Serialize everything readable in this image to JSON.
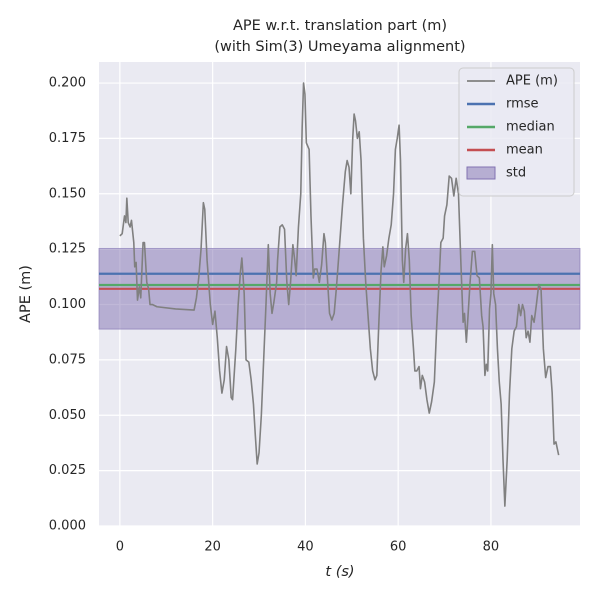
{
  "chart_data": {
    "type": "line",
    "title": "APE w.r.t. translation part (m)",
    "subtitle": "(with Sim(3) Umeyama alignment)",
    "x_label": "t (s)",
    "y_label": "APE (m)",
    "xlim": [
      -4.5,
      99.2
    ],
    "ylim": [
      0,
      0.2095
    ],
    "xticks": [
      0,
      20,
      40,
      60,
      80
    ],
    "yticks": [
      {
        "value": 0,
        "label": "0.000"
      },
      {
        "value": 0.025,
        "label": "0.025"
      },
      {
        "value": 0.05,
        "label": "0.050"
      },
      {
        "value": 0.075,
        "label": "0.075"
      },
      {
        "value": 0.1,
        "label": "0.100"
      },
      {
        "value": 0.125,
        "label": "0.125"
      },
      {
        "value": 0.15,
        "label": "0.150"
      },
      {
        "value": 0.175,
        "label": "0.175"
      },
      {
        "value": 0.2,
        "label": "0.200"
      }
    ],
    "grid": true,
    "legend": "upper right",
    "x": [
      0,
      0.5,
      1,
      1.3,
      1.5,
      1.8,
      2.2,
      2.5,
      3,
      3.2,
      3.5,
      3.8,
      4.2,
      4.5,
      5,
      5.3,
      5.8,
      6.2,
      6.5,
      7,
      8,
      12,
      16,
      16.5,
      17,
      17.5,
      18,
      18.3,
      18.8,
      19.5,
      20,
      20.5,
      21,
      21.5,
      22,
      22.5,
      23,
      23.5,
      24,
      24.3,
      25,
      25.5,
      26,
      26.3,
      26.8,
      27.2,
      27.8,
      28.3,
      28.8,
      29.2,
      29.6,
      30,
      30.5,
      31,
      31.5,
      32,
      32.4,
      32.8,
      33.2,
      33.8,
      34,
      34.5,
      35,
      35.5,
      36,
      36.4,
      36.8,
      37.3,
      37.7,
      38,
      38.5,
      39,
      39.3,
      39.6,
      39.9,
      40.2,
      40.8,
      41.2,
      41.7,
      42,
      42.5,
      43,
      43.5,
      44,
      44.3,
      44.8,
      45.2,
      45.7,
      46.2,
      46.7,
      47.3,
      48,
      48.6,
      49,
      49.4,
      49.8,
      50.2,
      50.5,
      50.8,
      51.2,
      51.6,
      52,
      52.5,
      53,
      53.5,
      54,
      54.5,
      55,
      55.4,
      55.8,
      56.3,
      56.7,
      57,
      57.5,
      58,
      58.5,
      59,
      59.4,
      59.8,
      60.2,
      60.5,
      60.9,
      61.2,
      61.6,
      62,
      62.4,
      62.8,
      63.3,
      63.6,
      64,
      64.5,
      64.8,
      65.2,
      65.7,
      66.2,
      66.7,
      67.2,
      67.8,
      68.3,
      68.8,
      69.2,
      69.7,
      70,
      70.5,
      71,
      71.5,
      72,
      72.5,
      73,
      73.5,
      74,
      74.3,
      74.7,
      75,
      75.5,
      76,
      76.5,
      77,
      77.5,
      78,
      78.3,
      78.7,
      79,
      79.3,
      79.7,
      80,
      80.3,
      80.6,
      81,
      81.4,
      81.8,
      82.2,
      82.6,
      83,
      83.5,
      84,
      84.5,
      85,
      85.5,
      86,
      86.4,
      86.8,
      87.2,
      87.6,
      88,
      88.4,
      88.8,
      89.3,
      89.8,
      90.3,
      90.8,
      91.3,
      91.8,
      92.3,
      92.8,
      93.2,
      93.6,
      94,
      94.3,
      94.6
    ],
    "series": [
      {
        "name": "APE (m)",
        "color": "#808080",
        "values": [
          0.131,
          0.132,
          0.14,
          0.137,
          0.148,
          0.137,
          0.135,
          0.138,
          0.128,
          0.117,
          0.119,
          0.102,
          0.108,
          0.103,
          0.128,
          0.128,
          0.11,
          0.107,
          0.1,
          0.1,
          0.099,
          0.098,
          0.0975,
          0.103,
          0.112,
          0.125,
          0.146,
          0.143,
          0.12,
          0.1,
          0.091,
          0.097,
          0.085,
          0.07,
          0.06,
          0.066,
          0.081,
          0.075,
          0.058,
          0.057,
          0.08,
          0.1,
          0.115,
          0.121,
          0.105,
          0.075,
          0.074,
          0.066,
          0.055,
          0.041,
          0.028,
          0.033,
          0.05,
          0.075,
          0.1,
          0.127,
          0.105,
          0.096,
          0.101,
          0.11,
          0.12,
          0.135,
          0.136,
          0.134,
          0.11,
          0.1,
          0.11,
          0.127,
          0.12,
          0.113,
          0.135,
          0.15,
          0.18,
          0.2,
          0.195,
          0.173,
          0.17,
          0.14,
          0.112,
          0.116,
          0.116,
          0.11,
          0.118,
          0.132,
          0.128,
          0.11,
          0.096,
          0.093,
          0.096,
          0.108,
          0.125,
          0.145,
          0.16,
          0.165,
          0.162,
          0.15,
          0.175,
          0.186,
          0.183,
          0.175,
          0.178,
          0.165,
          0.13,
          0.11,
          0.095,
          0.08,
          0.07,
          0.066,
          0.068,
          0.09,
          0.115,
          0.126,
          0.117,
          0.122,
          0.13,
          0.136,
          0.15,
          0.17,
          0.175,
          0.181,
          0.165,
          0.12,
          0.11,
          0.125,
          0.132,
          0.12,
          0.095,
          0.08,
          0.07,
          0.07,
          0.072,
          0.062,
          0.068,
          0.065,
          0.057,
          0.051,
          0.056,
          0.065,
          0.09,
          0.11,
          0.128,
          0.13,
          0.14,
          0.145,
          0.158,
          0.157,
          0.149,
          0.157,
          0.15,
          0.12,
          0.092,
          0.096,
          0.083,
          0.093,
          0.11,
          0.124,
          0.124,
          0.113,
          0.112,
          0.095,
          0.09,
          0.068,
          0.073,
          0.07,
          0.098,
          0.105,
          0.127,
          0.105,
          0.1,
          0.08,
          0.065,
          0.055,
          0.03,
          0.009,
          0.03,
          0.06,
          0.08,
          0.088,
          0.09,
          0.1,
          0.095,
          0.1,
          0.097,
          0.085,
          0.088,
          0.083,
          0.095,
          0.092,
          0.1,
          0.109,
          0.107,
          0.08,
          0.067,
          0.072,
          0.072,
          0.06,
          0.037,
          0.038,
          0.035,
          0.032
        ]
      }
    ],
    "hlines": [
      {
        "name": "rmse",
        "color": "#4c72b0",
        "value": 0.1139
      },
      {
        "name": "median",
        "color": "#55a868",
        "value": 0.1088
      },
      {
        "name": "mean",
        "color": "#c44e52",
        "value": 0.1071
      }
    ],
    "band": {
      "name": "std",
      "color": "#8172b2",
      "value": 0.0182
    }
  }
}
